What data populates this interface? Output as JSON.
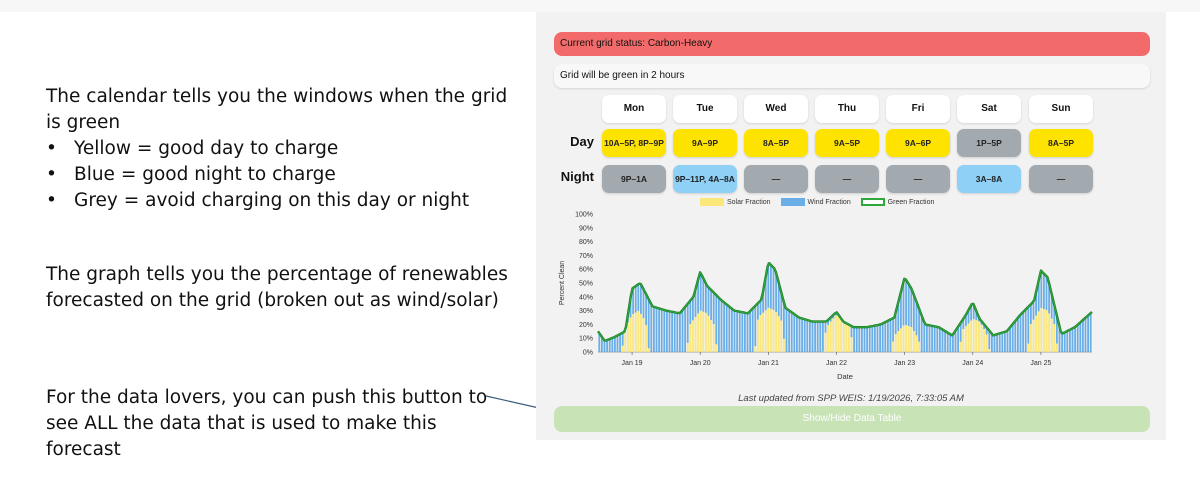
{
  "annotations": {
    "calendar_intro": "The calendar tells you the windows when the grid is green",
    "bullets": [
      "Yellow = good day to charge",
      "Blue = good night to charge",
      "Grey = avoid charging on this day or night"
    ],
    "graph_note": "The graph tells you the percentage of renewables forecasted on the grid (broken out as wind/solar)",
    "button_note": "For the data lovers, you can push this button to see ALL the data that is used to make this forecast"
  },
  "status": {
    "label": "Current grid status: Carbon-Heavy",
    "color": "#f36a6a"
  },
  "info": {
    "label": "Grid will be green in 2 hours"
  },
  "calendar": {
    "days": [
      "Mon",
      "Tue",
      "Wed",
      "Thu",
      "Fri",
      "Sat",
      "Sun"
    ],
    "row_labels": {
      "day": "Day",
      "night": "Night"
    },
    "day_windows": [
      {
        "text": "10A–5P, 8P–9P",
        "color": "yellow"
      },
      {
        "text": "9A–9P",
        "color": "yellow"
      },
      {
        "text": "8A–5P",
        "color": "yellow"
      },
      {
        "text": "9A–5P",
        "color": "yellow"
      },
      {
        "text": "9A–6P",
        "color": "yellow"
      },
      {
        "text": "1P–5P",
        "color": "grey"
      },
      {
        "text": "8A–5P",
        "color": "yellow"
      }
    ],
    "night_windows": [
      {
        "text": "9P–1A",
        "color": "grey"
      },
      {
        "text": "9P–11P, 4A–8A",
        "color": "blue"
      },
      {
        "text": "—",
        "color": "grey"
      },
      {
        "text": "—",
        "color": "grey"
      },
      {
        "text": "—",
        "color": "grey"
      },
      {
        "text": "3A–8A",
        "color": "blue"
      },
      {
        "text": "—",
        "color": "grey"
      }
    ],
    "colors": {
      "yellow": "#ffe300",
      "blue": "#8fd0f6",
      "grey": "#a3aaaf"
    }
  },
  "chart_data": {
    "type": "area",
    "xlabel": "Date",
    "ylabel": "Percent Clean",
    "ylim": [
      0,
      100
    ],
    "yticks": [
      "0%",
      "10%",
      "20%",
      "30%",
      "40%",
      "50%",
      "60%",
      "70%",
      "80%",
      "90%",
      "100%"
    ],
    "xticks": [
      "Jan 19",
      "Jan 20",
      "Jan 21",
      "Jan 22",
      "Jan 23",
      "Jan 24",
      "Jan 25"
    ],
    "x_range_days": [
      -0.5,
      6.75
    ],
    "legend": [
      "Solar Fraction",
      "Wind Fraction",
      "Green Fraction"
    ],
    "legend_position": "top-center",
    "series_colors": {
      "solar": "#fbe77a",
      "wind": "#6aaee8",
      "green": "#2ea83a"
    },
    "green_fraction_points": [
      [
        -0.5,
        15
      ],
      [
        -0.4,
        8
      ],
      [
        -0.25,
        11
      ],
      [
        -0.1,
        15
      ],
      [
        0.0,
        46
      ],
      [
        0.12,
        50
      ],
      [
        0.3,
        33
      ],
      [
        0.5,
        30
      ],
      [
        0.7,
        28
      ],
      [
        0.9,
        40
      ],
      [
        1.0,
        58
      ],
      [
        1.1,
        48
      ],
      [
        1.3,
        38
      ],
      [
        1.5,
        30
      ],
      [
        1.7,
        28
      ],
      [
        1.9,
        38
      ],
      [
        2.0,
        65
      ],
      [
        2.1,
        60
      ],
      [
        2.25,
        32
      ],
      [
        2.45,
        25
      ],
      [
        2.65,
        22
      ],
      [
        2.85,
        22
      ],
      [
        3.0,
        29
      ],
      [
        3.1,
        22
      ],
      [
        3.25,
        18
      ],
      [
        3.45,
        18
      ],
      [
        3.65,
        20
      ],
      [
        3.85,
        25
      ],
      [
        4.0,
        54
      ],
      [
        4.1,
        46
      ],
      [
        4.3,
        20
      ],
      [
        4.5,
        18
      ],
      [
        4.7,
        12
      ],
      [
        4.9,
        27
      ],
      [
        5.0,
        36
      ],
      [
        5.1,
        24
      ],
      [
        5.3,
        12
      ],
      [
        5.5,
        15
      ],
      [
        5.7,
        27
      ],
      [
        5.9,
        37
      ],
      [
        6.0,
        59
      ],
      [
        6.1,
        54
      ],
      [
        6.3,
        13
      ],
      [
        6.5,
        18
      ],
      [
        6.75,
        29
      ]
    ],
    "solar_fraction_points": [
      [
        -0.5,
        0
      ],
      [
        -0.15,
        0
      ],
      [
        -0.1,
        18
      ],
      [
        0.0,
        27
      ],
      [
        0.1,
        30
      ],
      [
        0.2,
        22
      ],
      [
        0.25,
        0
      ],
      [
        0.8,
        0
      ],
      [
        0.85,
        20
      ],
      [
        1.0,
        30
      ],
      [
        1.1,
        28
      ],
      [
        1.2,
        20
      ],
      [
        1.25,
        0
      ],
      [
        1.8,
        0
      ],
      [
        1.85,
        25
      ],
      [
        2.0,
        32
      ],
      [
        2.1,
        30
      ],
      [
        2.2,
        22
      ],
      [
        2.25,
        0
      ],
      [
        2.8,
        0
      ],
      [
        2.85,
        18
      ],
      [
        3.0,
        27
      ],
      [
        3.1,
        26
      ],
      [
        3.2,
        18
      ],
      [
        3.25,
        0
      ],
      [
        3.8,
        0
      ],
      [
        3.85,
        12
      ],
      [
        4.0,
        20
      ],
      [
        4.1,
        18
      ],
      [
        4.2,
        10
      ],
      [
        4.25,
        0
      ],
      [
        4.8,
        0
      ],
      [
        4.85,
        16
      ],
      [
        5.0,
        24
      ],
      [
        5.1,
        22
      ],
      [
        5.2,
        14
      ],
      [
        5.25,
        0
      ],
      [
        5.8,
        0
      ],
      [
        5.85,
        20
      ],
      [
        6.0,
        32
      ],
      [
        6.1,
        30
      ],
      [
        6.2,
        20
      ],
      [
        6.25,
        0
      ],
      [
        6.75,
        0
      ]
    ]
  },
  "footer": {
    "updated": "Last updated from SPP WEIS: 1/19/2026, 7:33:05 AM",
    "button_label": "Show/Hide Data Table"
  }
}
